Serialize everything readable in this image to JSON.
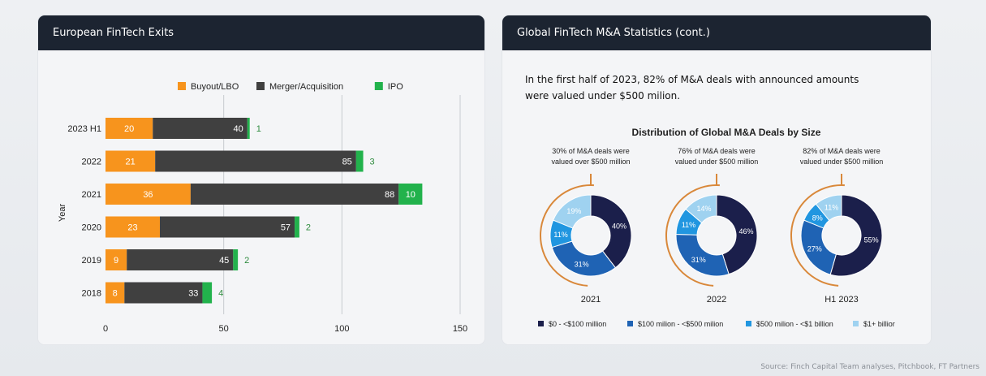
{
  "left_panel": {
    "title": "European FinTech Exits"
  },
  "right_panel": {
    "title": "Global FinTech M&A Statistics (cont.)",
    "intro": "In the first half of 2023, 82% of M&A deals with announced amounts were valued under $500 milion."
  },
  "source": "Source: Finch Capital Team analyses, Pitchbook, FT Partners",
  "chart_data": [
    {
      "type": "bar",
      "orientation": "horizontal",
      "stacked": true,
      "title": "",
      "xlabel": "",
      "ylabel": "Year",
      "xlim": [
        0,
        150
      ],
      "xticks": [
        "0",
        "50",
        "100",
        "150"
      ],
      "categories": [
        "2023 H1",
        "2022",
        "2021",
        "2020",
        "2019",
        "2018"
      ],
      "series": [
        {
          "name": "Buyout/LBO",
          "color": "#f7941d",
          "values": [
            20,
            21,
            36,
            23,
            9,
            8
          ]
        },
        {
          "name": "Merger/Acquisition",
          "color": "#404040",
          "values": [
            40,
            85,
            88,
            57,
            45,
            33
          ]
        },
        {
          "name": "IPO",
          "color": "#22b24c",
          "values": [
            1,
            3,
            10,
            2,
            2,
            4
          ]
        }
      ],
      "legend": "top",
      "grid": true
    },
    {
      "type": "pie",
      "variant": "donut",
      "title": "Distribution of Global M&A Deals by Size",
      "legend": "bottom",
      "categories": [
        "$0 - <$100 million",
        "$100 milion - <$500 milion",
        "$500 milion - <$1 billion",
        "$1+ billior"
      ],
      "colors": [
        "#1b1f4b",
        "#1f63b4",
        "#2196e0",
        "#9fd2f0"
      ],
      "series": [
        {
          "name": "2021",
          "values": [
            40,
            31,
            11,
            19
          ],
          "labels": [
            "40%",
            "31%",
            "11%",
            "19%"
          ],
          "note": "30% of M&A deals were valued over $500 million"
        },
        {
          "name": "2022",
          "values": [
            46,
            31,
            11,
            14
          ],
          "labels": [
            "46%",
            "31%",
            "11%",
            "14%"
          ],
          "note": "76% of M&A deals were valued under $500 million"
        },
        {
          "name": "H1 2023",
          "values": [
            55,
            27,
            8,
            11
          ],
          "labels": [
            "55%",
            "27%",
            "8%",
            "11%"
          ],
          "note": "82% of M&A deals were valued under $500 million"
        }
      ]
    }
  ]
}
